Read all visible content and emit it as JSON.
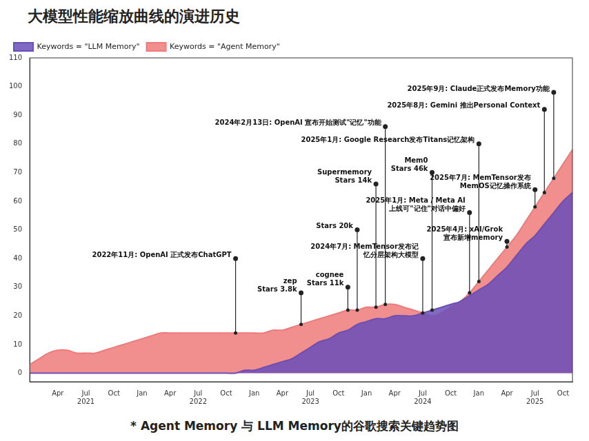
{
  "chart_data": {
    "type": "line",
    "title": "大模型性能缩放曲线的演进历史",
    "caption": "* Agent Memory 与 LLM Memory的谷歌搜索关键趋势图",
    "categories": [
      null,
      null,
      null,
      "Apr",
      null,
      null,
      [
        "Jul",
        "2021"
      ],
      null,
      null,
      "Oct",
      null,
      null,
      "Jan",
      null,
      null,
      "Apr",
      null,
      null,
      [
        "Jul",
        "2022"
      ],
      null,
      null,
      "Oct",
      null,
      null,
      "Jan",
      null,
      null,
      "Apr",
      null,
      null,
      [
        "Jul",
        "2023"
      ],
      null,
      null,
      "Oct",
      null,
      null,
      "Jan",
      null,
      null,
      "Apr",
      null,
      null,
      [
        "Jul",
        "2024"
      ],
      null,
      null,
      "Oct",
      null,
      null,
      "Jan",
      null,
      null,
      "Apr",
      null,
      null,
      [
        "Jul",
        "2025"
      ],
      null,
      null,
      "Oct",
      null
    ],
    "series": [
      {
        "name": "Keywords = \"Agent Memory\"",
        "color": "#ee7a7a",
        "values": [
          3,
          5,
          7,
          8,
          8,
          7,
          7,
          7,
          8,
          9,
          10,
          11,
          12,
          13,
          14,
          14,
          14,
          14,
          14,
          14,
          14,
          14,
          14,
          14,
          14,
          14,
          15,
          15,
          16,
          17,
          18,
          19,
          20,
          21,
          22,
          22,
          23,
          23,
          24,
          24,
          23,
          22,
          21,
          20,
          21,
          23,
          25,
          28,
          32,
          36,
          40,
          44,
          48,
          53,
          58,
          63,
          68,
          73,
          78
        ]
      },
      {
        "name": "Keywords = \"LLM Memory\"",
        "color": "#6a4fb8",
        "values": [
          0,
          0,
          0,
          0,
          0,
          0,
          0,
          0,
          0,
          0,
          0,
          0,
          0,
          0,
          0,
          0,
          0,
          0,
          0,
          0,
          0,
          0,
          0,
          1,
          1,
          2,
          3,
          4,
          5,
          7,
          9,
          11,
          12,
          14,
          15,
          17,
          18,
          19,
          19,
          20,
          20,
          20,
          21,
          22,
          23,
          24,
          25,
          27,
          29,
          31,
          34,
          37,
          41,
          45,
          48,
          52,
          56,
          60,
          63
        ]
      }
    ],
    "annotations": [
      {
        "text": [
          "2022年11月: OpenAI 正式发布ChatGPT"
        ],
        "at": 22,
        "y": 40
      },
      {
        "text": [
          "zep",
          "Stars 3.8k"
        ],
        "at": 29,
        "y": 28
      },
      {
        "text": [
          "cognee",
          "Stars 11k"
        ],
        "at": 34,
        "y": 30
      },
      {
        "text": [
          "Stars 20k"
        ],
        "at": 35,
        "y": 50
      },
      {
        "text": [
          "Supermemory",
          "Stars 14k"
        ],
        "at": 37,
        "y": 66
      },
      {
        "text": [
          "2024年2月13日: OpenAI 宣布开始测试\"记忆\"功能"
        ],
        "at": 38,
        "y": 86
      },
      {
        "text": [
          "2024年7月: MemTensor发布记",
          "忆分层架构大模型"
        ],
        "at": 42,
        "y": 40
      },
      {
        "text": [
          "Mem0",
          "Stars 46k"
        ],
        "at": 43,
        "y": 70
      },
      {
        "text": [
          "2025年1月: Meta / Meta AI",
          "上线可\"记住\"对话中偏好"
        ],
        "at": 47,
        "y": 56
      },
      {
        "text": [
          "2025年1月: Google Research发布Titans记忆架构"
        ],
        "at": 48,
        "y": 80
      },
      {
        "text": [
          "2025年4月: xAI/Grok",
          "宣布新增memory"
        ],
        "at": 51,
        "y": 46
      },
      {
        "text": [
          "2025年7月: MemTensor发布",
          "MemOS记忆操作系统"
        ],
        "at": 54,
        "y": 64
      },
      {
        "text": [
          "2025年8月: Gemini 推出Personal Context"
        ],
        "at": 55,
        "y": 92
      },
      {
        "text": [
          "2025年9月: Claude正式发布Memory功能"
        ],
        "at": 56,
        "y": 98
      }
    ],
    "ylim": [
      -3,
      110
    ],
    "yticks": [
      0,
      10,
      20,
      30,
      40,
      50,
      60,
      70,
      80,
      90,
      100,
      110
    ],
    "grid": false,
    "legend": "upper left"
  }
}
